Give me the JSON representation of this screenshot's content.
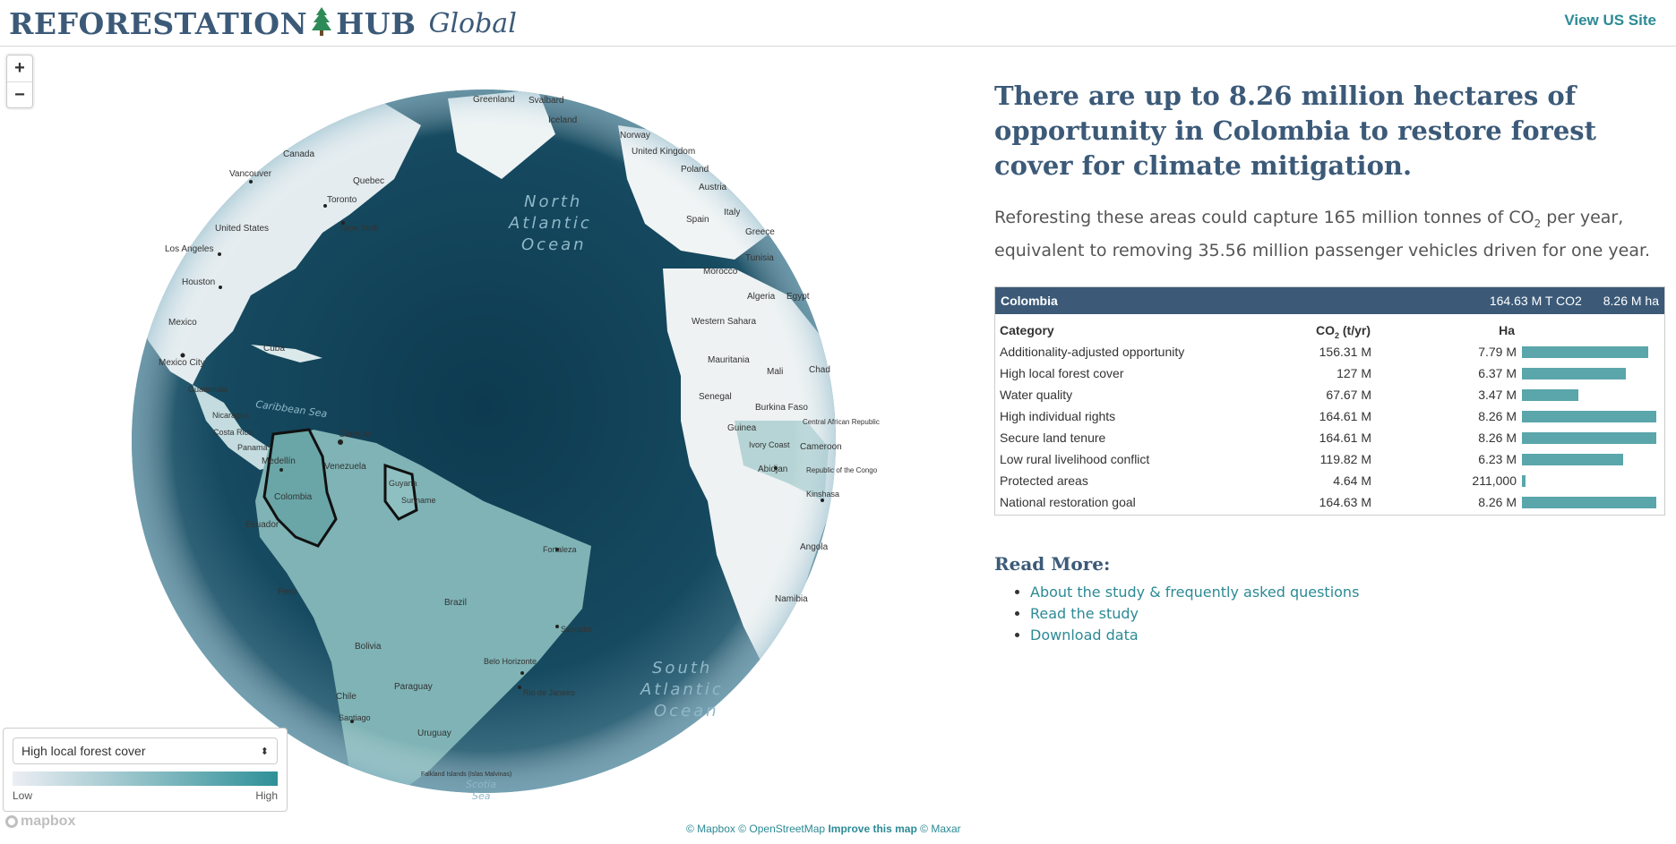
{
  "header": {
    "brand_left": "REFORESTATION",
    "brand_right": "HUB",
    "brand_tagline": "Global",
    "us_site_link": "View US Site"
  },
  "map": {
    "zoom_in": "+",
    "zoom_out": "−",
    "oceans": {
      "north_atlantic": [
        "North",
        "Atlantic",
        "Ocean"
      ],
      "south_atlantic": [
        "South",
        "Atlantic",
        "Ocean"
      ],
      "caribbean": "Caribbean Sea",
      "scotia": [
        "Scotia",
        "Sea"
      ]
    },
    "places": {
      "greenland": "Greenland",
      "svalbard": "Svalbard",
      "iceland": "Iceland",
      "norway": "Norway",
      "united_kingdom": "United Kingdom",
      "poland": "Poland",
      "austria": "Austria",
      "spain": "Spain",
      "italy": "Italy",
      "greece": "Greece",
      "tunisia": "Tunisia",
      "morocco": "Morocco",
      "algeria": "Algeria",
      "egypt": "Egypt",
      "western_sahara": "Western Sahara",
      "mauritania": "Mauritania",
      "mali": "Mali",
      "chad": "Chad",
      "senegal": "Senegal",
      "burkina_faso": "Burkina Faso",
      "guinea": "Guinea",
      "car": "Central African Republic",
      "ivory_coast": "Ivory Coast",
      "cameroon": "Cameroon",
      "abidjan": "Abidjan",
      "rep_congo": "Republic of the Congo",
      "kinshasa": "Kinshasa",
      "angola": "Angola",
      "namibia": "Namibia",
      "canada": "Canada",
      "vancouver": "Vancouver",
      "quebec": "Quebec",
      "toronto": "Toronto",
      "new_york": "New York",
      "united_states": "United States",
      "los_angeles": "Los Angeles",
      "houston": "Houston",
      "mexico": "Mexico",
      "mexico_city": "Mexico City",
      "cuba": "Cuba",
      "guatemala": "Guatemala",
      "nicaragua": "Nicaragua",
      "costa_rica": "Costa Rica",
      "panama": "Panama",
      "caracas": "Caracas",
      "medellin": "Medellín",
      "venezuela": "Venezuela",
      "colombia": "Colombia",
      "guyana": "Guyana",
      "suriname": "Suriname",
      "ecuador": "Ecuador",
      "fortaleza": "Fortaleza",
      "peru": "Peru",
      "brazil": "Brazil",
      "salvador": "Salvador",
      "bolivia": "Bolivia",
      "belo_horizonte": "Belo Horizonte",
      "rio": "Rio de Janeiro",
      "paraguay": "Paraguay",
      "chile": "Chile",
      "santiago": "Santiago",
      "uruguay": "Uruguay",
      "falklands": "Falkland Islands (Islas Malvinas)"
    }
  },
  "legend": {
    "selected_layer": "High local forest cover",
    "low": "Low",
    "high": "High",
    "ramp_colors": [
      "#eceef3",
      "#2f9098"
    ]
  },
  "attribution": {
    "mapbox_logo": "mapbox",
    "mapbox": "© Mapbox",
    "osm": "© OpenStreetMap",
    "improve": "Improve this map",
    "maxar": "© Maxar"
  },
  "panel": {
    "headline": "There are up to 8.26 million hectares of opportunity in Colombia to restore forest cover for climate mitigation.",
    "subline_part1": "Reforesting these areas could capture 165 million tonnes of CO",
    "subline_sub": "2",
    "subline_part2": " per year, equivalent to removing 35.56 million passenger vehicles driven for one year.",
    "table": {
      "country": "Colombia",
      "total_co2": "164.63 M T CO2",
      "total_ha": "8.26 M ha",
      "col_category": "Category",
      "col_co2_prefix": "CO",
      "col_co2_sub": "2",
      "col_co2_suffix": " (t/yr)",
      "col_ha": "Ha",
      "rows": [
        {
          "category": "Additionality-adjusted opportunity",
          "co2": "156.31 M",
          "ha": "7.79 M",
          "ha_share": 0.943
        },
        {
          "category": "High local forest cover",
          "co2": "127 M",
          "ha": "6.37 M",
          "ha_share": 0.771
        },
        {
          "category": "Water quality",
          "co2": "67.67 M",
          "ha": "3.47 M",
          "ha_share": 0.42
        },
        {
          "category": "High individual rights",
          "co2": "164.61 M",
          "ha": "8.26 M",
          "ha_share": 1.0
        },
        {
          "category": "Secure land tenure",
          "co2": "164.61 M",
          "ha": "8.26 M",
          "ha_share": 1.0
        },
        {
          "category": "Low rural livelihood conflict",
          "co2": "119.82 M",
          "ha": "6.23 M",
          "ha_share": 0.754
        },
        {
          "category": "Protected areas",
          "co2": "4.64 M",
          "ha": "211,000",
          "ha_share": 0.026
        },
        {
          "category": "National restoration goal",
          "co2": "164.63 M",
          "ha": "8.26 M",
          "ha_share": 1.0
        }
      ],
      "bar_color": "#5aa6ab"
    },
    "read_more_title": "Read More:",
    "links": [
      "About the study & frequently asked questions",
      "Read the study",
      "Download data"
    ]
  }
}
